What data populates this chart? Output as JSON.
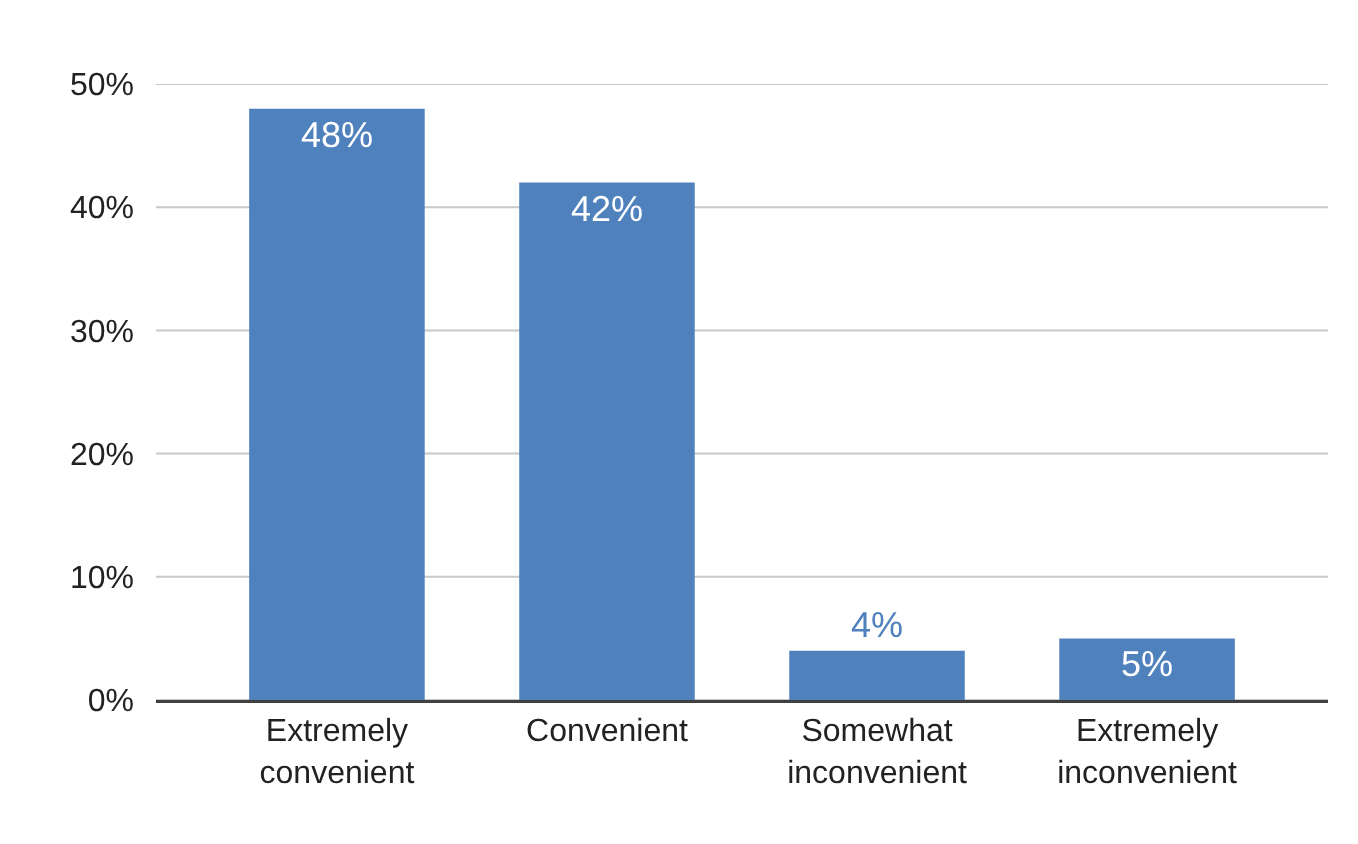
{
  "chart_data": {
    "type": "bar",
    "categories": [
      "Extremely convenient",
      "Convenient",
      "Somewhat inconvenient",
      "Extremely inconvenient"
    ],
    "values": [
      48,
      42,
      4,
      5
    ],
    "value_labels": [
      "48%",
      "42%",
      "4%",
      "5%"
    ],
    "color": "#4f81bd",
    "ylim": [
      0,
      50
    ],
    "yticks": [
      {
        "value": 0,
        "label": "0%"
      },
      {
        "value": 10,
        "label": "10%"
      },
      {
        "value": 20,
        "label": "20%"
      },
      {
        "value": 30,
        "label": "30%"
      },
      {
        "value": 40,
        "label": "40%"
      },
      {
        "value": 50,
        "label": "50%"
      }
    ],
    "grid": "y"
  }
}
